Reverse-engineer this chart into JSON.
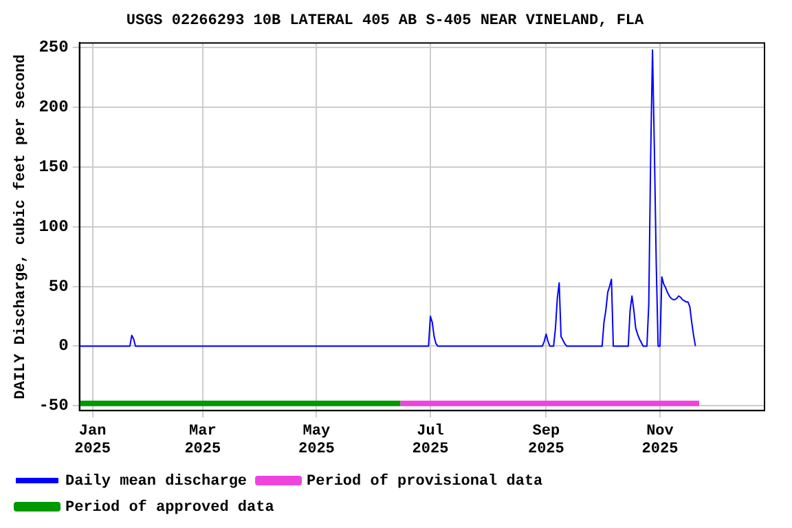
{
  "chart_data": {
    "type": "line",
    "title": "USGS 02266293 10B LATERAL 405 AB S-405 NEAR VINELAND, FLA",
    "ylabel": "DAILY Discharge, cubic feet per second",
    "xlim": [
      "2024-12-25",
      "2025-12-27"
    ],
    "ylim": [
      -54,
      254
    ],
    "yticks": [
      -50,
      0,
      50,
      100,
      150,
      200,
      250
    ],
    "xticks": [
      {
        "value": "2025-01-01",
        "label": "Jan\n2025"
      },
      {
        "value": "2025-03-01",
        "label": "Mar\n2025"
      },
      {
        "value": "2025-05-01",
        "label": "May\n2025"
      },
      {
        "value": "2025-07-01",
        "label": "Jul\n2025"
      },
      {
        "value": "2025-09-01",
        "label": "Sep\n2025"
      },
      {
        "value": "2025-11-01",
        "label": "Nov\n2025"
      }
    ],
    "grid": true,
    "legend": "bottom",
    "marker": "none",
    "line_style": "solid",
    "series": [
      {
        "name": "Daily mean discharge",
        "color": "#0000ff",
        "x": [
          "2024-12-25",
          "2025-01-21",
          "2025-01-22",
          "2025-01-23",
          "2025-01-24",
          "2025-06-30",
          "2025-07-01",
          "2025-07-02",
          "2025-07-03",
          "2025-07-04",
          "2025-07-05",
          "2025-08-30",
          "2025-08-31",
          "2025-09-01",
          "2025-09-02",
          "2025-09-03",
          "2025-09-05",
          "2025-09-06",
          "2025-09-07",
          "2025-09-08",
          "2025-09-09",
          "2025-09-10",
          "2025-09-11",
          "2025-09-12",
          "2025-10-01",
          "2025-10-02",
          "2025-10-03",
          "2025-10-04",
          "2025-10-05",
          "2025-10-06",
          "2025-10-07",
          "2025-10-15",
          "2025-10-16",
          "2025-10-17",
          "2025-10-18",
          "2025-10-19",
          "2025-10-20",
          "2025-10-21",
          "2025-10-22",
          "2025-10-23",
          "2025-10-25",
          "2025-10-26",
          "2025-10-27",
          "2025-10-28",
          "2025-10-29",
          "2025-10-30",
          "2025-10-31",
          "2025-11-01",
          "2025-11-02",
          "2025-11-03",
          "2025-11-04",
          "2025-11-05",
          "2025-11-06",
          "2025-11-07",
          "2025-11-08",
          "2025-11-09",
          "2025-11-10",
          "2025-11-11",
          "2025-11-12",
          "2025-11-13",
          "2025-11-14",
          "2025-11-15",
          "2025-11-16",
          "2025-11-17",
          "2025-11-18",
          "2025-11-19",
          "2025-11-20"
        ],
        "values": [
          0,
          0,
          9,
          6,
          0,
          0,
          25,
          20,
          8,
          2,
          0,
          0,
          4,
          10,
          4,
          0,
          0,
          15,
          40,
          53,
          8,
          5,
          2,
          0,
          0,
          20,
          30,
          45,
          50,
          56,
          0,
          0,
          30,
          42,
          30,
          15,
          10,
          6,
          3,
          0,
          0,
          35,
          158,
          248,
          165,
          69,
          0,
          0,
          58,
          52,
          49,
          45,
          42,
          40,
          39,
          39,
          40,
          42,
          41,
          39,
          38,
          37,
          37,
          33,
          20,
          9,
          0
        ]
      },
      {
        "name": "Period of provisional data",
        "color": "#ee44dd",
        "x": [
          "2025-06-15",
          "2025-11-22"
        ],
        "values": [
          -48,
          -48
        ]
      },
      {
        "name": "Period of approved data",
        "color": "#009900",
        "x": [
          "2024-12-25",
          "2025-06-15"
        ],
        "values": [
          -48,
          -48
        ]
      }
    ]
  }
}
